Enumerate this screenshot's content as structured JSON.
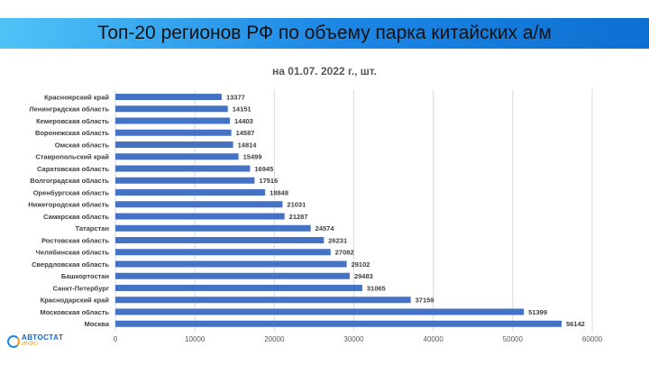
{
  "header": {
    "title": "Топ-20 регионов РФ по объему парка китайских а/м"
  },
  "logo": {
    "line1": "АВТОСТАТ",
    "line2": "ИНФО"
  },
  "chart_data": {
    "type": "bar",
    "orientation": "horizontal",
    "title": "на 01.07. 2022 г., шт.",
    "categories": [
      "Красноярский край",
      "Ленинградская область",
      "Кемеровская область",
      "Воронежская область",
      "Омская область",
      "Ставропольский край",
      "Саратовская область",
      "Волгоградская область",
      "Оренбургская область",
      "Нижегородская область",
      "Самарская область",
      "Татарстан",
      "Ростовская область",
      "Челябинская область",
      "Свердловская область",
      "Башкортостан",
      "Санкт-Петербург",
      "Краснодарский край",
      "Московская область",
      "Москва"
    ],
    "values": [
      13377,
      14151,
      14403,
      14587,
      14814,
      15499,
      16945,
      17516,
      18848,
      21031,
      21287,
      24574,
      26231,
      27082,
      29102,
      29483,
      31065,
      37159,
      51399,
      56142
    ],
    "xlim": [
      0,
      60000
    ],
    "x_ticks": [
      0,
      10000,
      20000,
      30000,
      40000,
      50000,
      60000
    ],
    "bar_color": "#4472c4",
    "grid": true,
    "data_labels": true
  }
}
